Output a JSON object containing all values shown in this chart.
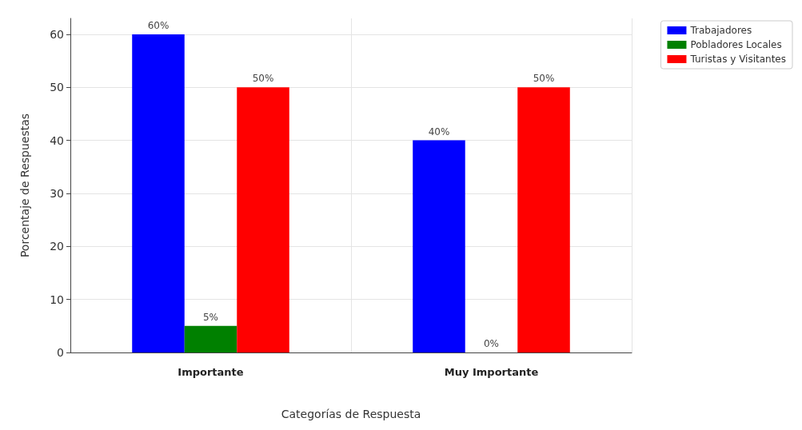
{
  "chart_data": {
    "type": "bar",
    "xlabel": "Categorías de Respuesta",
    "ylabel": "Porcentaje de Respuestas",
    "categories": [
      "Importante",
      "Muy Importante"
    ],
    "series": [
      {
        "name": "Trabajadores",
        "color": "#0000ff",
        "values": [
          60,
          40
        ],
        "value_labels": [
          "60%",
          "40%"
        ]
      },
      {
        "name": "Pobladores Locales",
        "color": "#008000",
        "values": [
          5,
          0
        ],
        "value_labels": [
          "5%",
          "0%"
        ]
      },
      {
        "name": "Turistas y Visitantes",
        "color": "#ff0000",
        "values": [
          50,
          50
        ],
        "value_labels": [
          "50%",
          "50%"
        ]
      }
    ],
    "ylim": [
      0,
      63
    ],
    "yticks": [
      0,
      10,
      20,
      30,
      40,
      50,
      60
    ],
    "grid": true,
    "legend": "top right"
  }
}
